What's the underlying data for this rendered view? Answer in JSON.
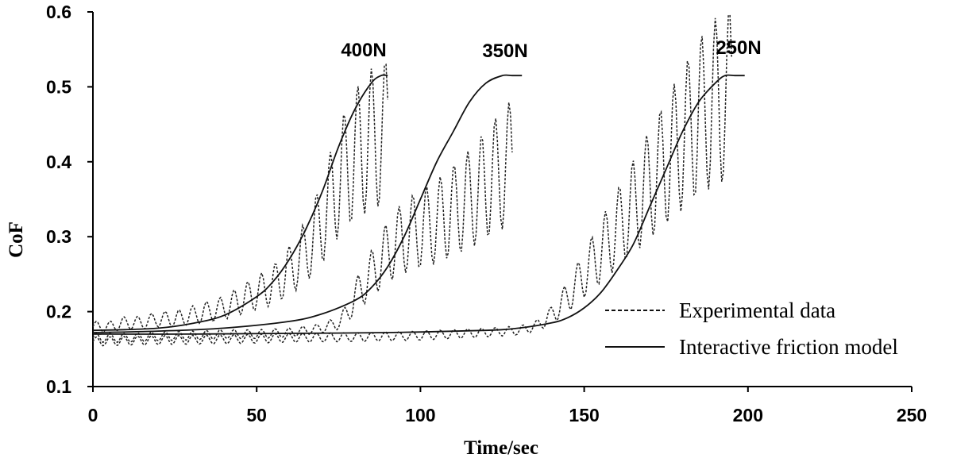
{
  "chart_data": {
    "type": "line",
    "xlabel": "Time/sec",
    "ylabel": "CoF",
    "xlim": [
      0,
      250
    ],
    "ylim": [
      0.1,
      0.6
    ],
    "x_ticks": [
      "0",
      "50",
      "100",
      "150",
      "200",
      "250"
    ],
    "y_ticks": [
      "0.1",
      "0.2",
      "0.3",
      "0.4",
      "0.5",
      "0.6"
    ],
    "grid": false,
    "legend_position": "bottom-right",
    "legend": [
      {
        "label": "Experimental data",
        "style": "dashed"
      },
      {
        "label": "Interactive friction model",
        "style": "solid"
      }
    ],
    "annotations": [
      "400N",
      "350N",
      "250N"
    ],
    "series": [
      {
        "label": "400N",
        "style": "dashed",
        "x": [
          0,
          5,
          10,
          15,
          20,
          25,
          30,
          35,
          40,
          45,
          50,
          55,
          60,
          65,
          70,
          75,
          80,
          85,
          90
        ],
        "y": [
          0.18,
          0.18,
          0.185,
          0.185,
          0.19,
          0.19,
          0.195,
          0.2,
          0.205,
          0.215,
          0.225,
          0.235,
          0.255,
          0.28,
          0.32,
          0.375,
          0.41,
          0.43,
          0.44
        ]
      },
      {
        "label": "400N",
        "style": "solid",
        "x": [
          0,
          10,
          20,
          30,
          40,
          50,
          55,
          60,
          65,
          70,
          75,
          80,
          85,
          88,
          90
        ],
        "y": [
          0.175,
          0.176,
          0.178,
          0.184,
          0.195,
          0.22,
          0.24,
          0.27,
          0.31,
          0.36,
          0.42,
          0.47,
          0.505,
          0.515,
          0.515
        ]
      },
      {
        "label": "350N",
        "style": "dashed",
        "x": [
          0,
          10,
          20,
          30,
          40,
          50,
          60,
          65,
          70,
          75,
          78,
          80,
          85,
          90,
          95,
          100,
          105,
          110,
          115,
          120,
          125,
          128
        ],
        "y": [
          0.165,
          0.165,
          0.167,
          0.168,
          0.17,
          0.17,
          0.172,
          0.175,
          0.178,
          0.185,
          0.2,
          0.22,
          0.25,
          0.28,
          0.3,
          0.31,
          0.32,
          0.335,
          0.35,
          0.37,
          0.39,
          0.4
        ]
      },
      {
        "label": "350N",
        "style": "solid",
        "x": [
          0,
          20,
          40,
          60,
          70,
          80,
          85,
          90,
          95,
          100,
          105,
          110,
          115,
          120,
          125,
          128,
          131
        ],
        "y": [
          0.172,
          0.174,
          0.178,
          0.187,
          0.197,
          0.215,
          0.232,
          0.26,
          0.3,
          0.35,
          0.4,
          0.44,
          0.48,
          0.505,
          0.515,
          0.515,
          0.515
        ]
      },
      {
        "label": "250N",
        "style": "dashed",
        "x": [
          0,
          20,
          40,
          60,
          80,
          100,
          120,
          130,
          135,
          140,
          145,
          150,
          155,
          160,
          165,
          170,
          175,
          180,
          185,
          190,
          195
        ],
        "y": [
          0.16,
          0.162,
          0.163,
          0.165,
          0.166,
          0.168,
          0.172,
          0.175,
          0.18,
          0.195,
          0.22,
          0.25,
          0.28,
          0.31,
          0.34,
          0.37,
          0.4,
          0.43,
          0.46,
          0.48,
          0.49
        ]
      },
      {
        "label": "250N",
        "style": "solid",
        "x": [
          0,
          30,
          60,
          90,
          120,
          130,
          140,
          145,
          150,
          155,
          160,
          165,
          170,
          175,
          180,
          185,
          190,
          193,
          196,
          199
        ],
        "y": [
          0.17,
          0.17,
          0.171,
          0.172,
          0.175,
          0.178,
          0.185,
          0.192,
          0.205,
          0.225,
          0.255,
          0.29,
          0.34,
          0.39,
          0.44,
          0.48,
          0.505,
          0.515,
          0.515,
          0.515
        ]
      }
    ]
  }
}
